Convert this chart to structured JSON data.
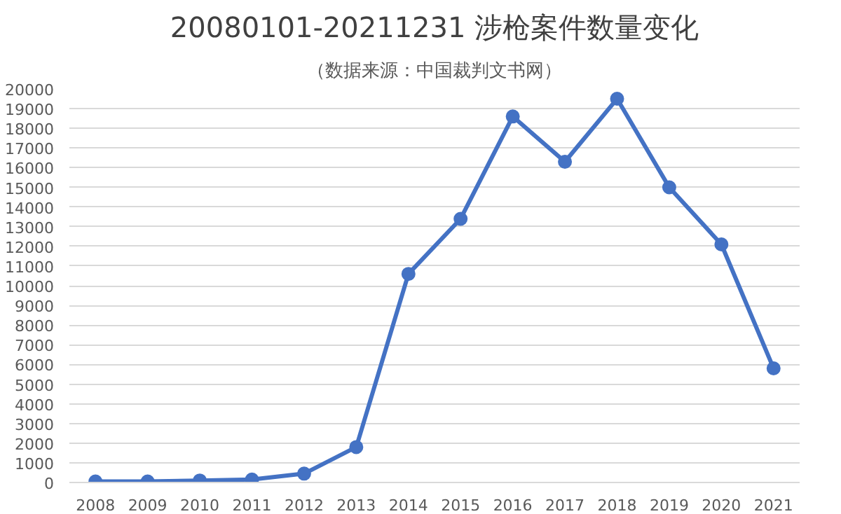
{
  "chart_data": {
    "type": "line",
    "title": "20080101-20211231 涉枪案件数量变化",
    "subtitle": "（数据来源：中国裁判文书网）",
    "categories": [
      "2008",
      "2009",
      "2010",
      "2011",
      "2012",
      "2013",
      "2014",
      "2015",
      "2016",
      "2017",
      "2018",
      "2019",
      "2020",
      "2021"
    ],
    "series": [
      {
        "color": "#4472c4",
        "values": [
          50,
          50,
          100,
          150,
          450,
          1800,
          10600,
          13400,
          18600,
          16300,
          19500,
          15000,
          12100,
          5800
        ]
      }
    ],
    "ylim": [
      0,
      20000
    ],
    "yticks": [
      0,
      1000,
      2000,
      3000,
      4000,
      5000,
      6000,
      7000,
      8000,
      9000,
      10000,
      11000,
      12000,
      13000,
      14000,
      15000,
      16000,
      17000,
      18000,
      19000,
      20000
    ],
    "grid": "y",
    "marker": "circle",
    "line_style": "solid"
  }
}
